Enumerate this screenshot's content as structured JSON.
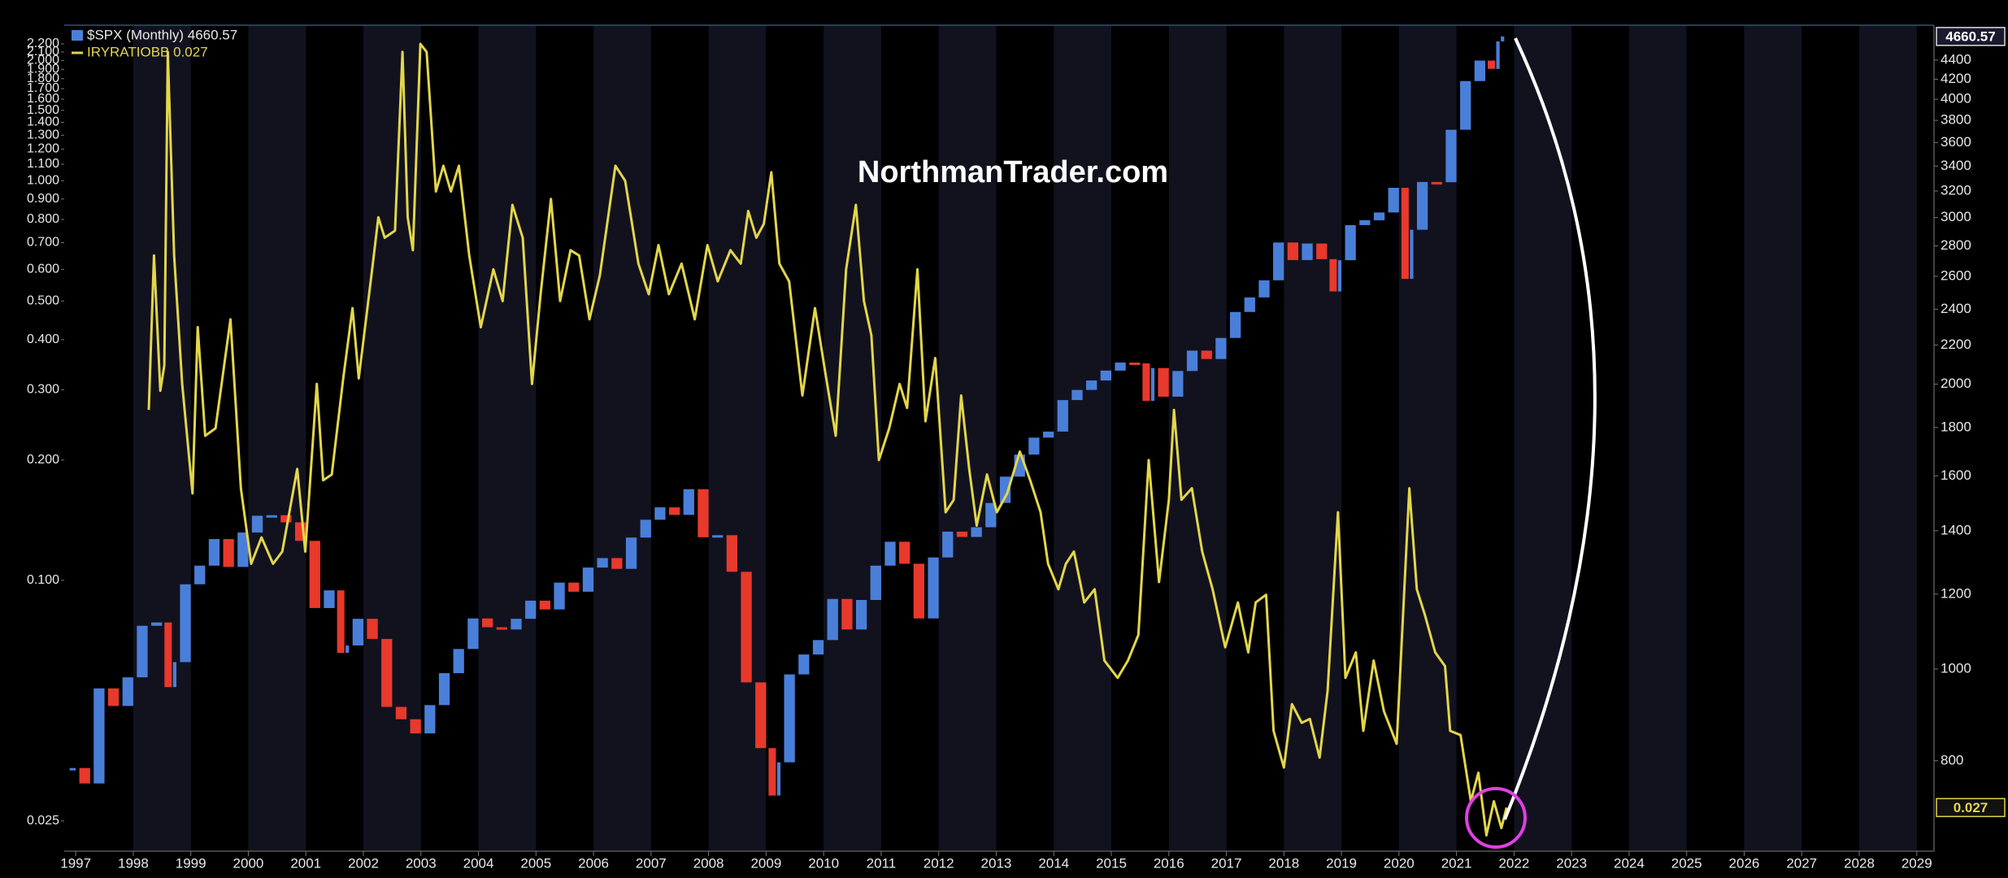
{
  "chart_data": {
    "type": "candle_line",
    "watermark": "NorthmanTrader.com",
    "xlim": [
      1996.8,
      2029.3
    ],
    "xticks": [
      1997,
      1998,
      1999,
      2000,
      2001,
      2002,
      2003,
      2004,
      2005,
      2006,
      2007,
      2008,
      2009,
      2010,
      2011,
      2012,
      2013,
      2014,
      2015,
      2016,
      2017,
      2018,
      2019,
      2020,
      2021,
      2022,
      2023,
      2024,
      2025,
      2026,
      2027,
      2028,
      2029
    ],
    "ylim": [
      0.021,
      2.45
    ],
    "ylog": true,
    "yticks": [
      {
        "value": 0.025,
        "label": "0.025"
      },
      {
        "value": 0.1,
        "label": "0.100"
      },
      {
        "value": 0.2,
        "label": "0.200"
      },
      {
        "value": 0.3,
        "label": "0.300"
      },
      {
        "value": 0.4,
        "label": "0.400"
      },
      {
        "value": 0.5,
        "label": "0.500"
      },
      {
        "value": 0.6,
        "label": "0.600"
      },
      {
        "value": 0.7,
        "label": "0.700"
      },
      {
        "value": 0.8,
        "label": "0.800"
      },
      {
        "value": 0.9,
        "label": "0.900"
      },
      {
        "value": 1,
        "label": "1.000"
      },
      {
        "value": 1.1,
        "label": "1.100"
      },
      {
        "value": 1.2,
        "label": "1.200"
      },
      {
        "value": 1.3,
        "label": "1.300"
      },
      {
        "value": 1.4,
        "label": "1.400"
      },
      {
        "value": 1.5,
        "label": "1.500"
      },
      {
        "value": 1.6,
        "label": "1.600"
      },
      {
        "value": 1.7,
        "label": "1.700"
      },
      {
        "value": 1.8,
        "label": "1.800"
      },
      {
        "value": 1.9,
        "label": "1.900"
      },
      {
        "value": 2,
        "label": "2.000"
      },
      {
        "value": 2.1,
        "label": "2.100"
      },
      {
        "value": 2.2,
        "label": "2.200"
      }
    ],
    "y2lim": [
      642,
      4790
    ],
    "y2log": true,
    "y2ticks": [
      800,
      1000,
      1200,
      1400,
      1600,
      1800,
      2000,
      2200,
      2400,
      2600,
      2800,
      3000,
      3200,
      3400,
      3600,
      3800,
      4000,
      4200,
      4400
    ],
    "grid": false,
    "legend": "top-left",
    "series": [
      {
        "name": "$SPX (Monthly) 4660.57",
        "style": "candle",
        "axis": "y2",
        "color": "#4a7fd9",
        "down_color": "#e8392c",
        "last_value": 4660.57,
        "x": [
          1997.0,
          1997.25,
          1997.5,
          1997.75,
          1998.0,
          1998.25,
          1998.5,
          1998.67,
          1998.75,
          1999.0,
          1999.25,
          1999.5,
          1999.75,
          2000.0,
          2000.25,
          2000.5,
          2000.75,
          2001.0,
          2001.25,
          2001.5,
          2001.67,
          2001.75,
          2002.0,
          2002.25,
          2002.5,
          2002.75,
          2003.0,
          2003.25,
          2003.5,
          2003.75,
          2004.0,
          2004.25,
          2004.5,
          2004.75,
          2005.0,
          2005.25,
          2005.5,
          2005.75,
          2006.0,
          2006.25,
          2006.5,
          2006.75,
          2007.0,
          2007.25,
          2007.5,
          2007.75,
          2008.0,
          2008.25,
          2008.5,
          2008.75,
          2009.0,
          2009.17,
          2009.25,
          2009.5,
          2009.75,
          2010.0,
          2010.25,
          2010.5,
          2010.75,
          2011.0,
          2011.25,
          2011.5,
          2011.75,
          2012.0,
          2012.25,
          2012.5,
          2012.75,
          2013.0,
          2013.25,
          2013.5,
          2013.75,
          2014.0,
          2014.25,
          2014.5,
          2014.75,
          2015.0,
          2015.25,
          2015.5,
          2015.67,
          2015.75,
          2016.0,
          2016.25,
          2016.5,
          2016.75,
          2017.0,
          2017.25,
          2017.5,
          2017.75,
          2018.0,
          2018.25,
          2018.5,
          2018.75,
          2018.92,
          2019.0,
          2019.25,
          2019.5,
          2019.75,
          2020.0,
          2020.17,
          2020.25,
          2020.5,
          2020.75,
          2021.0,
          2021.25,
          2021.5,
          2021.67,
          2021.75,
          2021.83
        ],
        "values": [
          786,
          757,
          954,
          914,
          980,
          1111,
          1120,
          957,
          1017,
          1229,
          1286,
          1372,
          1282,
          1394,
          1452,
          1454,
          1429,
          1366,
          1160,
          1211,
          1040,
          1059,
          1130,
          1076,
          912,
          885,
          855,
          916,
          990,
          1050,
          1131,
          1107,
          1101,
          1130,
          1181,
          1156,
          1234,
          1207,
          1280,
          1310,
          1276,
          1377,
          1438,
          1482,
          1455,
          1549,
          1378,
          1385,
          1267,
          968,
          825,
          735,
          797,
          987,
          1036,
          1073,
          1186,
          1101,
          1183,
          1286,
          1363,
          1292,
          1131,
          1312,
          1397,
          1379,
          1412,
          1498,
          1597,
          1685,
          1756,
          1782,
          1924,
          1972,
          2018,
          2067,
          2108,
          2104,
          1920,
          2080,
          1940,
          2065,
          2170,
          2126,
          2238,
          2384,
          2470,
          2575,
          2823,
          2705,
          2816,
          2711,
          2506,
          2704,
          2945,
          2980,
          3037,
          3225,
          2584,
          2912,
          3271,
          3269,
          3714,
          4181,
          4395,
          4307,
          4605,
          4660.57
        ]
      },
      {
        "name": "IRYRATIOBB 0.027",
        "style": "line",
        "color": "#e3d64a",
        "last_value": 0.027,
        "x": [
          1998.27,
          1998.36,
          1998.47,
          1998.54,
          1998.6,
          1998.71,
          1998.85,
          1999.03,
          1999.12,
          1999.25,
          1999.43,
          1999.69,
          1999.87,
          2000.05,
          2000.23,
          2000.43,
          2000.59,
          2000.85,
          2000.99,
          2001.19,
          2001.3,
          2001.45,
          2001.65,
          2001.81,
          2001.92,
          2002.14,
          2002.26,
          2002.37,
          2002.55,
          2002.68,
          2002.77,
          2002.86,
          2002.99,
          2003.1,
          2003.26,
          2003.39,
          2003.52,
          2003.66,
          2003.84,
          2004.04,
          2004.26,
          2004.42,
          2004.59,
          2004.77,
          2004.93,
          2005.08,
          2005.26,
          2005.42,
          2005.6,
          2005.75,
          2005.93,
          2006.11,
          2006.38,
          2006.55,
          2006.78,
          2006.96,
          2007.13,
          2007.31,
          2007.53,
          2007.76,
          2007.98,
          2008.16,
          2008.38,
          2008.56,
          2008.69,
          2008.83,
          2008.96,
          2009.09,
          2009.23,
          2009.4,
          2009.63,
          2009.85,
          2010.03,
          2010.21,
          2010.39,
          2010.56,
          2010.7,
          2010.83,
          2010.96,
          2011.14,
          2011.32,
          2011.45,
          2011.63,
          2011.77,
          2011.94,
          2012.12,
          2012.26,
          2012.39,
          2012.53,
          2012.66,
          2012.84,
          2013.01,
          2013.19,
          2013.41,
          2013.59,
          2013.77,
          2013.9,
          2014.08,
          2014.21,
          2014.35,
          2014.53,
          2014.71,
          2014.88,
          2015.11,
          2015.29,
          2015.47,
          2015.65,
          2015.83,
          2016.0,
          2016.09,
          2016.22,
          2016.4,
          2016.58,
          2016.76,
          2016.98,
          2017.2,
          2017.38,
          2017.51,
          2017.69,
          2017.82,
          2018.0,
          2018.14,
          2018.31,
          2018.45,
          2018.62,
          2018.76,
          2018.94,
          2019.07,
          2019.25,
          2019.38,
          2019.56,
          2019.74,
          2019.96,
          2020.18,
          2020.31,
          2020.45,
          2020.63,
          2020.8,
          2020.89,
          2021.07,
          2021.25,
          2021.38,
          2021.52,
          2021.65,
          2021.78,
          2021.87
        ],
        "values": [
          0.267,
          0.65,
          0.298,
          0.345,
          2.1,
          0.65,
          0.31,
          0.165,
          0.43,
          0.23,
          0.24,
          0.45,
          0.17,
          0.11,
          0.128,
          0.11,
          0.118,
          0.19,
          0.118,
          0.31,
          0.178,
          0.184,
          0.32,
          0.48,
          0.32,
          0.58,
          0.81,
          0.72,
          0.75,
          2.1,
          0.81,
          0.67,
          2.2,
          2.1,
          0.94,
          1.09,
          0.94,
          1.09,
          0.65,
          0.43,
          0.6,
          0.5,
          0.87,
          0.72,
          0.31,
          0.52,
          0.9,
          0.5,
          0.67,
          0.65,
          0.45,
          0.58,
          1.09,
          1.0,
          0.62,
          0.52,
          0.69,
          0.52,
          0.62,
          0.45,
          0.69,
          0.56,
          0.67,
          0.62,
          0.84,
          0.72,
          0.78,
          1.05,
          0.62,
          0.56,
          0.29,
          0.48,
          0.33,
          0.23,
          0.6,
          0.87,
          0.5,
          0.41,
          0.2,
          0.24,
          0.31,
          0.27,
          0.6,
          0.25,
          0.36,
          0.148,
          0.159,
          0.29,
          0.19,
          0.137,
          0.184,
          0.148,
          0.165,
          0.21,
          0.178,
          0.148,
          0.11,
          0.095,
          0.11,
          0.118,
          0.088,
          0.095,
          0.063,
          0.057,
          0.063,
          0.073,
          0.2,
          0.099,
          0.159,
          0.267,
          0.159,
          0.17,
          0.118,
          0.095,
          0.068,
          0.088,
          0.066,
          0.088,
          0.092,
          0.042,
          0.034,
          0.049,
          0.044,
          0.045,
          0.036,
          0.053,
          0.148,
          0.057,
          0.066,
          0.042,
          0.063,
          0.047,
          0.039,
          0.17,
          0.095,
          0.082,
          0.066,
          0.061,
          0.042,
          0.041,
          0.028,
          0.033,
          0.023,
          0.028,
          0.024,
          0.027
        ]
      }
    ]
  }
}
